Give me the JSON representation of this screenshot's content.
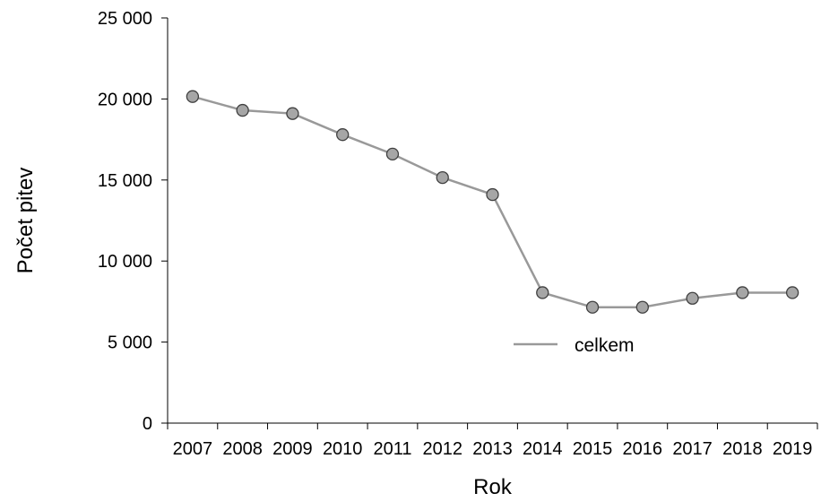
{
  "chart_data": {
    "type": "line",
    "title": "",
    "xlabel": "Rok",
    "ylabel": "Počet pitev",
    "categories": [
      "2007",
      "2008",
      "2009",
      "2010",
      "2011",
      "2012",
      "2013",
      "2014",
      "2015",
      "2016",
      "2017",
      "2018",
      "2019"
    ],
    "series": [
      {
        "name": "celkem",
        "values": [
          20150,
          19300,
          19100,
          17800,
          16600,
          15150,
          14100,
          8050,
          7150,
          7150,
          7700,
          8050,
          8050
        ],
        "line_color": "#999999",
        "marker_fill": "#a6a6a6",
        "marker_stroke": "#404040"
      }
    ],
    "ylim": [
      0,
      25000
    ],
    "yticks": [
      0,
      5000,
      10000,
      15000,
      20000,
      25000
    ],
    "ytick_labels": [
      "0",
      "5 000",
      "10 000",
      "15 000",
      "20 000",
      "25 000"
    ],
    "grid": false,
    "legend_position": "lower-right-inside"
  }
}
